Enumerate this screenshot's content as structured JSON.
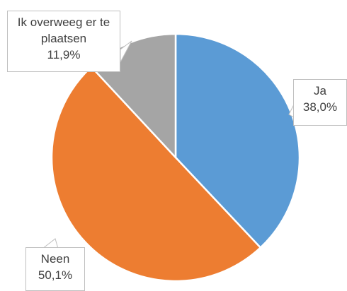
{
  "chart_data": {
    "type": "pie",
    "categories": [
      "Ja",
      "Neen",
      "Ik overweeg er te plaatsen"
    ],
    "values": [
      38.0,
      50.1,
      11.9
    ],
    "value_labels": [
      "38,0%",
      "50,1%",
      "11,9%"
    ],
    "colors": [
      "#5b9bd5",
      "#ed7d31",
      "#a5a5a5"
    ]
  }
}
